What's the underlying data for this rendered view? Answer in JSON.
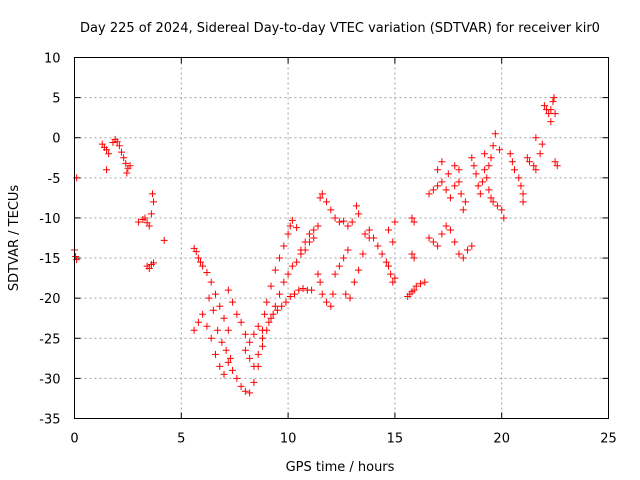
{
  "chart_data": {
    "type": "scatter",
    "title": "Day 225 of 2024, Sidereal Day-to-day VTEC variation (SDTVAR) for receiver kir0",
    "xlabel": "GPS time / hours",
    "ylabel": "SDTVAR / TECUs",
    "xlim": [
      0,
      25
    ],
    "ylim": [
      -35,
      10
    ],
    "xticks": [
      0,
      5,
      10,
      15,
      20,
      25
    ],
    "yticks": [
      -35,
      -30,
      -25,
      -20,
      -15,
      -10,
      -5,
      0,
      5,
      10
    ],
    "grid": true,
    "marker": "+",
    "color": "#ff0000",
    "series": [
      {
        "name": "SDTVAR",
        "points": [
          [
            0.0,
            -14.0
          ],
          [
            0.05,
            -14.8
          ],
          [
            0.1,
            -15.2
          ],
          [
            0.1,
            -5.0
          ],
          [
            1.3,
            -0.8
          ],
          [
            1.4,
            -1.2
          ],
          [
            1.5,
            -1.5
          ],
          [
            1.6,
            -2.0
          ],
          [
            1.5,
            -4.0
          ],
          [
            1.8,
            -0.6
          ],
          [
            1.9,
            -0.2
          ],
          [
            2.0,
            -0.5
          ],
          [
            2.1,
            -1.0
          ],
          [
            2.2,
            -1.8
          ],
          [
            2.3,
            -2.5
          ],
          [
            2.4,
            -3.2
          ],
          [
            2.5,
            -3.8
          ],
          [
            2.6,
            -3.5
          ],
          [
            2.45,
            -4.4
          ],
          [
            3.0,
            -10.5
          ],
          [
            3.2,
            -10.2
          ],
          [
            3.3,
            -10.0
          ],
          [
            3.4,
            -10.6
          ],
          [
            3.5,
            -11.0
          ],
          [
            3.6,
            -9.5
          ],
          [
            3.7,
            -8.0
          ],
          [
            3.65,
            -7.0
          ],
          [
            3.4,
            -16.0
          ],
          [
            3.5,
            -16.3
          ],
          [
            3.6,
            -15.8
          ],
          [
            3.7,
            -15.6
          ],
          [
            4.2,
            -12.8
          ],
          [
            5.6,
            -13.8
          ],
          [
            5.7,
            -14.2
          ],
          [
            5.8,
            -15.0
          ],
          [
            5.9,
            -15.5
          ],
          [
            6.0,
            -16.0
          ],
          [
            6.2,
            -16.8
          ],
          [
            6.4,
            -18.0
          ],
          [
            6.6,
            -19.5
          ],
          [
            6.8,
            -21.0
          ],
          [
            7.0,
            -22.5
          ],
          [
            7.2,
            -24.0
          ],
          [
            5.6,
            -24.0
          ],
          [
            5.8,
            -23.0
          ],
          [
            6.0,
            -22.0
          ],
          [
            6.2,
            -23.5
          ],
          [
            6.4,
            -25.0
          ],
          [
            6.6,
            -27.0
          ],
          [
            6.8,
            -28.5
          ],
          [
            7.0,
            -29.5
          ],
          [
            7.2,
            -28.0
          ],
          [
            7.4,
            -29.0
          ],
          [
            7.6,
            -30.0
          ],
          [
            7.8,
            -31.0
          ],
          [
            8.0,
            -31.6
          ],
          [
            8.2,
            -31.8
          ],
          [
            8.4,
            -30.5
          ],
          [
            8.6,
            -28.5
          ],
          [
            8.8,
            -26.0
          ],
          [
            9.0,
            -24.0
          ],
          [
            9.2,
            -22.5
          ],
          [
            9.4,
            -21.0
          ],
          [
            9.6,
            -19.5
          ],
          [
            9.8,
            -18.0
          ],
          [
            10.0,
            -17.0
          ],
          [
            10.2,
            -16.0
          ],
          [
            10.4,
            -15.5
          ],
          [
            10.6,
            -14.5
          ],
          [
            10.8,
            -14.0
          ],
          [
            11.0,
            -13.0
          ],
          [
            11.2,
            -12.5
          ],
          [
            6.3,
            -20.0
          ],
          [
            6.5,
            -21.5
          ],
          [
            6.7,
            -24.0
          ],
          [
            6.9,
            -25.5
          ],
          [
            7.1,
            -26.5
          ],
          [
            7.3,
            -27.5
          ],
          [
            7.2,
            -19.0
          ],
          [
            7.4,
            -20.5
          ],
          [
            7.6,
            -22.0
          ],
          [
            7.8,
            -23.0
          ],
          [
            8.0,
            -24.5
          ],
          [
            8.2,
            -25.5
          ],
          [
            8.4,
            -24.5
          ],
          [
            8.6,
            -23.5
          ],
          [
            8.8,
            -24.0
          ],
          [
            8.0,
            -26.5
          ],
          [
            8.2,
            -27.5
          ],
          [
            8.4,
            -28.5
          ],
          [
            8.6,
            -27.0
          ],
          [
            8.8,
            -25.0
          ],
          [
            9.0,
            -20.5
          ],
          [
            9.2,
            -18.5
          ],
          [
            9.4,
            -16.5
          ],
          [
            9.6,
            -15.0
          ],
          [
            9.8,
            -13.5
          ],
          [
            10.0,
            -12.0
          ],
          [
            10.1,
            -11.0
          ],
          [
            10.2,
            -10.3
          ],
          [
            10.4,
            -11.2
          ],
          [
            8.9,
            -22.0
          ],
          [
            9.1,
            -23.0
          ],
          [
            9.3,
            -22.0
          ],
          [
            9.5,
            -21.5
          ],
          [
            9.7,
            -21.0
          ],
          [
            9.9,
            -20.5
          ],
          [
            10.1,
            -19.8
          ],
          [
            10.3,
            -19.5
          ],
          [
            10.5,
            -19.0
          ],
          [
            10.7,
            -18.8
          ],
          [
            10.9,
            -19.0
          ],
          [
            11.1,
            -19.0
          ],
          [
            10.6,
            -14.0
          ],
          [
            10.8,
            -13.0
          ],
          [
            11.0,
            -12.0
          ],
          [
            11.2,
            -11.5
          ],
          [
            11.4,
            -11.0
          ],
          [
            11.5,
            -7.5
          ],
          [
            11.6,
            -7.0
          ],
          [
            11.8,
            -8.0
          ],
          [
            12.0,
            -9.0
          ],
          [
            12.2,
            -10.0
          ],
          [
            12.4,
            -10.5
          ],
          [
            12.6,
            -10.4
          ],
          [
            12.8,
            -11.0
          ],
          [
            13.0,
            -10.5
          ],
          [
            13.2,
            -8.5
          ],
          [
            13.3,
            -9.5
          ],
          [
            11.4,
            -17.0
          ],
          [
            11.5,
            -18.0
          ],
          [
            11.6,
            -19.5
          ],
          [
            11.8,
            -20.5
          ],
          [
            12.0,
            -21.0
          ],
          [
            12.1,
            -19.5
          ],
          [
            12.2,
            -17.0
          ],
          [
            12.4,
            -16.0
          ],
          [
            12.6,
            -15.0
          ],
          [
            12.8,
            -14.0
          ],
          [
            12.7,
            -19.5
          ],
          [
            12.9,
            -20.0
          ],
          [
            13.1,
            -18.0
          ],
          [
            13.3,
            -16.5
          ],
          [
            13.5,
            -14.5
          ],
          [
            13.6,
            -12.0
          ],
          [
            13.8,
            -12.5
          ],
          [
            13.8,
            -11.5
          ],
          [
            14.0,
            -12.5
          ],
          [
            14.2,
            -13.5
          ],
          [
            14.4,
            -14.5
          ],
          [
            14.6,
            -15.5
          ],
          [
            14.7,
            -16.0
          ],
          [
            14.8,
            -17.0
          ],
          [
            14.9,
            -18.0
          ],
          [
            15.0,
            -17.5
          ],
          [
            14.7,
            -11.5
          ],
          [
            14.9,
            -13.0
          ],
          [
            15.0,
            -10.5
          ],
          [
            15.6,
            -19.8
          ],
          [
            15.7,
            -19.5
          ],
          [
            15.8,
            -19.2
          ],
          [
            15.9,
            -19.0
          ],
          [
            16.0,
            -18.5
          ],
          [
            16.2,
            -18.2
          ],
          [
            16.4,
            -18.0
          ],
          [
            15.8,
            -10.0
          ],
          [
            15.9,
            -10.5
          ],
          [
            15.8,
            -14.5
          ],
          [
            15.9,
            -15.0
          ],
          [
            16.6,
            -12.5
          ],
          [
            16.8,
            -13.0
          ],
          [
            17.0,
            -13.5
          ],
          [
            17.2,
            -12.0
          ],
          [
            17.4,
            -11.0
          ],
          [
            17.6,
            -11.5
          ],
          [
            17.8,
            -13.0
          ],
          [
            18.0,
            -14.5
          ],
          [
            18.2,
            -15.0
          ],
          [
            18.4,
            -14.0
          ],
          [
            18.6,
            -13.5
          ],
          [
            16.6,
            -7.0
          ],
          [
            16.8,
            -6.5
          ],
          [
            17.0,
            -6.0
          ],
          [
            17.2,
            -5.5
          ],
          [
            17.4,
            -6.5
          ],
          [
            17.6,
            -7.5
          ],
          [
            17.8,
            -6.0
          ],
          [
            18.0,
            -5.5
          ],
          [
            18.1,
            -7.0
          ],
          [
            18.2,
            -9.0
          ],
          [
            18.3,
            -8.0
          ],
          [
            17.0,
            -4.0
          ],
          [
            17.2,
            -3.0
          ],
          [
            17.5,
            -4.5
          ],
          [
            17.8,
            -3.5
          ],
          [
            18.0,
            -4.0
          ],
          [
            18.6,
            -2.5
          ],
          [
            18.7,
            -3.5
          ],
          [
            18.8,
            -4.5
          ],
          [
            18.9,
            -6.0
          ],
          [
            19.0,
            -7.0
          ],
          [
            19.1,
            -5.5
          ],
          [
            19.2,
            -4.0
          ],
          [
            19.3,
            -5.0
          ],
          [
            19.4,
            -6.5
          ],
          [
            19.5,
            -7.5
          ],
          [
            19.6,
            -8.0
          ],
          [
            19.8,
            -8.5
          ],
          [
            20.0,
            -9.0
          ],
          [
            20.1,
            -10.0
          ],
          [
            19.2,
            -2.0
          ],
          [
            19.4,
            -3.5
          ],
          [
            19.5,
            -2.5
          ],
          [
            19.6,
            -1.0
          ],
          [
            19.7,
            0.5
          ],
          [
            19.9,
            -1.5
          ],
          [
            20.4,
            -2.0
          ],
          [
            20.5,
            -3.0
          ],
          [
            20.6,
            -4.0
          ],
          [
            20.8,
            -5.0
          ],
          [
            20.9,
            -6.0
          ],
          [
            21.0,
            -7.0
          ],
          [
            21.0,
            -8.0
          ],
          [
            21.2,
            -2.5
          ],
          [
            21.3,
            -3.0
          ],
          [
            21.5,
            -3.5
          ],
          [
            21.6,
            -4.0
          ],
          [
            21.8,
            -2.0
          ],
          [
            21.9,
            -0.8
          ],
          [
            21.6,
            0.0
          ],
          [
            22.0,
            4.0
          ],
          [
            22.1,
            3.5
          ],
          [
            22.2,
            3.0
          ],
          [
            22.3,
            3.5
          ],
          [
            22.4,
            4.5
          ],
          [
            22.45,
            5.0
          ],
          [
            22.5,
            3.0
          ],
          [
            22.3,
            2.0
          ],
          [
            22.5,
            -3.0
          ],
          [
            22.6,
            -3.5
          ]
        ]
      }
    ]
  }
}
